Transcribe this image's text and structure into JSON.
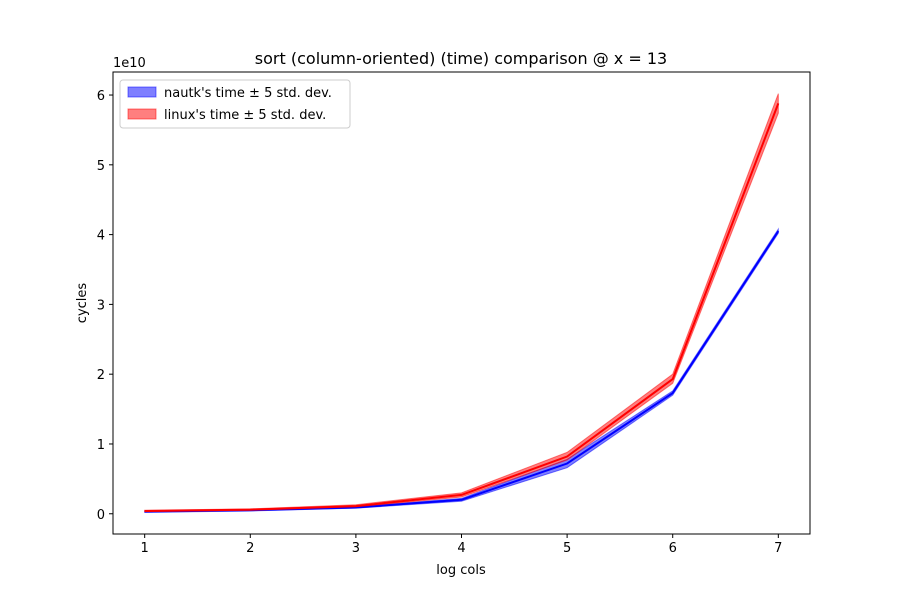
{
  "chart_data": {
    "type": "line",
    "title": "sort (column-oriented) (time) comparison @ x = 13",
    "xlabel": "log cols",
    "ylabel": "cycles",
    "offset_text": "1e10",
    "x": [
      1,
      2,
      3,
      4,
      5,
      6,
      7
    ],
    "series": [
      {
        "name": "nautk's time ± 5 std. dev.",
        "color": "#0000ff",
        "values": [
          0.03,
          0.05,
          0.09,
          0.2,
          0.72,
          1.73,
          4.05
        ],
        "lower": [
          0.02,
          0.04,
          0.08,
          0.18,
          0.66,
          1.7,
          4.02
        ],
        "upper": [
          0.04,
          0.06,
          0.1,
          0.22,
          0.78,
          1.76,
          4.08
        ]
      },
      {
        "name": "linux's time ± 5 std. dev.",
        "color": "#ff0000",
        "values": [
          0.04,
          0.06,
          0.11,
          0.27,
          0.82,
          1.93,
          5.88
        ],
        "lower": [
          0.03,
          0.05,
          0.1,
          0.24,
          0.77,
          1.87,
          5.74
        ],
        "upper": [
          0.05,
          0.07,
          0.13,
          0.3,
          0.88,
          2.0,
          6.02
        ]
      }
    ],
    "xlim": [
      0.7,
      7.3
    ],
    "xticks": [
      1,
      2,
      3,
      4,
      5,
      6,
      7
    ],
    "ylim": [
      -0.29,
      6.33
    ],
    "yticks": [
      0,
      1,
      2,
      3,
      4,
      5,
      6
    ],
    "legend": "upper left"
  }
}
